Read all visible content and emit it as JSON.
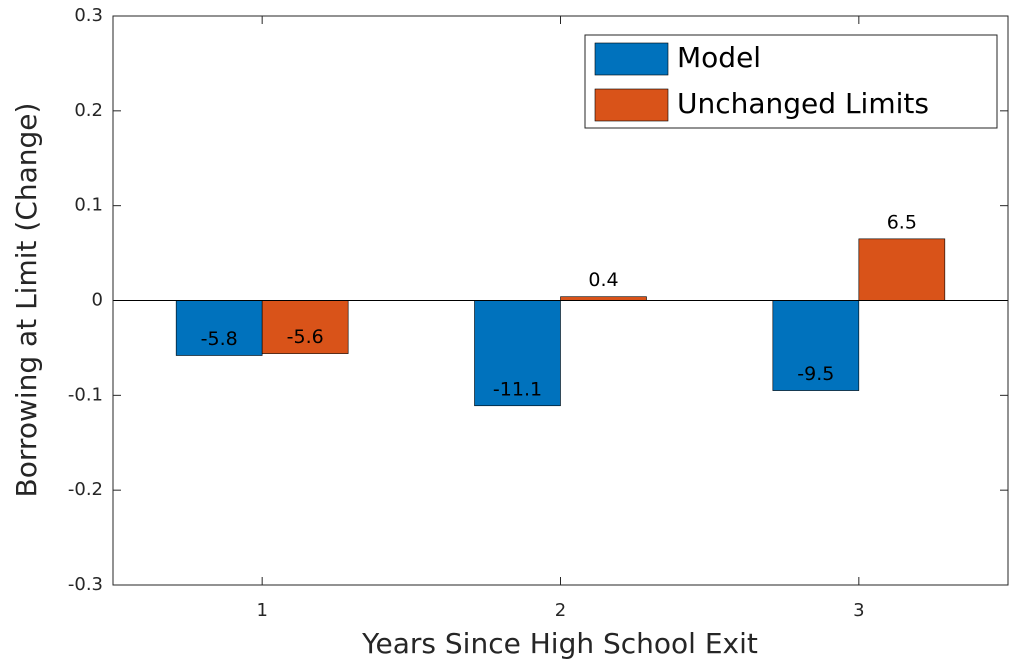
{
  "chart_data": {
    "type": "bar",
    "xlabel": "Years Since High School Exit",
    "ylabel": "Borrowing at Limit (Change)",
    "categories": [
      "1",
      "2",
      "3"
    ],
    "series": [
      {
        "name": "Model",
        "color": "#0072bd",
        "values": [
          -0.058,
          -0.111,
          -0.095
        ],
        "value_labels": [
          "-5.8",
          "-11.1",
          "-9.5"
        ]
      },
      {
        "name": "Unchanged Limits",
        "color": "#d95319",
        "values": [
          -0.056,
          0.004,
          0.065
        ],
        "value_labels": [
          "-5.6",
          "0.4",
          "6.5"
        ]
      }
    ],
    "ylim": [
      -0.3,
      0.3
    ],
    "yticks": [
      -0.3,
      -0.2,
      -0.1,
      0,
      0.1,
      0.2,
      0.3
    ],
    "legend": "upper right"
  }
}
